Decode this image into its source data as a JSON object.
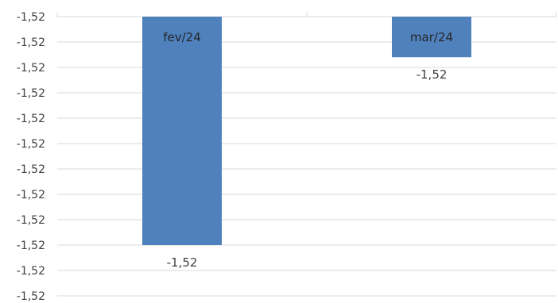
{
  "chart_data": {
    "type": "bar",
    "categories": [
      "fev/24",
      "mar/24"
    ],
    "values": [
      -1.5245,
      -1.5208
    ],
    "data_labels": [
      "-1,52",
      "-1,52"
    ],
    "y_tick_labels": [
      "-1,52",
      "-1,52",
      "-1,52",
      "-1,52",
      "-1,52",
      "-1,52",
      "-1,52",
      "-1,52",
      "-1,52",
      "-1,52",
      "-1,52",
      "-1,52"
    ],
    "ylim": [
      -1.5255,
      -1.52
    ],
    "title": "",
    "xlabel": "",
    "ylabel": "",
    "grid": true,
    "legend": "none",
    "bar_color": "#4F81BD",
    "grid_color": "#D9D9D9"
  }
}
